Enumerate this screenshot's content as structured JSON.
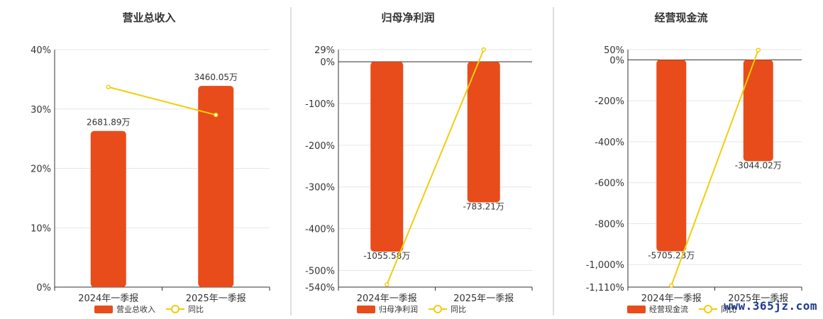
{
  "colors": {
    "bar": "#E84C1A",
    "line": "#F2CD0E",
    "marker_fill": "#ffffff"
  },
  "watermark": "www.365jz.com",
  "chart_data": [
    {
      "type": "bar",
      "title": "营业总收入",
      "categories": [
        "2024年一季报",
        "2025年一季报"
      ],
      "series": [
        {
          "name": "营业总收入",
          "kind": "bar",
          "values": [
            26.3,
            33.9
          ],
          "labels": [
            "2681.89万",
            "3460.05万"
          ]
        },
        {
          "name": "同比",
          "kind": "line",
          "values": [
            33.7,
            29.0
          ]
        }
      ],
      "ylim": [
        0,
        40
      ],
      "yticks": [
        "0%",
        "10%",
        "20%",
        "30%",
        "40%"
      ],
      "ytick_values": [
        0,
        10,
        20,
        30,
        40
      ],
      "label_side": "above",
      "legend": "bottom"
    },
    {
      "type": "bar",
      "title": "归母净利润",
      "categories": [
        "2024年一季报",
        "2025年一季报"
      ],
      "series": [
        {
          "name": "归母净利润",
          "kind": "bar",
          "values": [
            -455,
            -337
          ],
          "labels": [
            "-1055.58万",
            "-783.21万"
          ]
        },
        {
          "name": "同比",
          "kind": "line",
          "values": [
            -534,
            29
          ]
        }
      ],
      "ylim": [
        -540,
        29
      ],
      "yticks": [
        "29%",
        "0%",
        "-100%",
        "-200%",
        "-300%",
        "-400%",
        "-500%",
        "-540%"
      ],
      "ytick_values": [
        29,
        0,
        -100,
        -200,
        -300,
        -400,
        -500,
        -540
      ],
      "label_side": "below",
      "legend": "bottom"
    },
    {
      "type": "bar",
      "title": "经营现金流",
      "categories": [
        "2024年一季报",
        "2025年一季报"
      ],
      "series": [
        {
          "name": "经营现金流",
          "kind": "bar",
          "values": [
            -935,
            -495
          ],
          "labels": [
            "-5705.23万",
            "-3044.02万"
          ]
        },
        {
          "name": "同比",
          "kind": "line",
          "values": [
            -1102,
            48
          ]
        }
      ],
      "ylim": [
        -1110,
        50
      ],
      "yticks": [
        "50%",
        "0%",
        "-200%",
        "-400%",
        "-600%",
        "-800%",
        "-1,000%",
        "-1,110%"
      ],
      "ytick_values": [
        50,
        0,
        -200,
        -400,
        -600,
        -800,
        -1000,
        -1110
      ],
      "label_side": "below",
      "legend": "bottom"
    }
  ]
}
